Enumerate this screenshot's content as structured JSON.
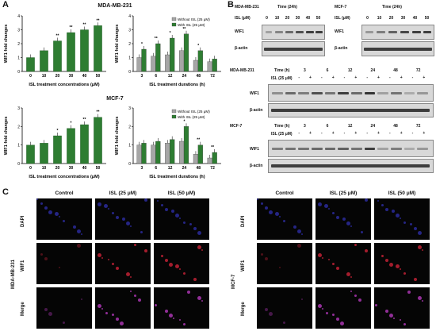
{
  "panel_labels": {
    "a": "A",
    "b": "B",
    "c": "C"
  },
  "section_titles": {
    "mda": "MDA-MB-231",
    "mcf": "MCF-7"
  },
  "chart_data": [
    {
      "type": "bar",
      "title": "MDA-MB-231",
      "ylabel": "WIF1 fold changes",
      "xlabel": "ISL treatment concentrations (μM)",
      "categories": [
        "0",
        "10",
        "20",
        "30",
        "40",
        "50"
      ],
      "values": [
        1.0,
        1.5,
        2.2,
        2.8,
        3.0,
        3.3
      ],
      "ylim": [
        0,
        4
      ],
      "yticks": [
        "0",
        "1",
        "2",
        "3",
        "4"
      ],
      "sig": [
        "",
        "",
        "**",
        "**",
        "**",
        "**"
      ],
      "colors": [
        "#2e7d32"
      ]
    },
    {
      "type": "bar",
      "ylabel": "WIF1 fold changes",
      "xlabel": "ISL treatment durations (h)",
      "categories": [
        "3",
        "6",
        "12",
        "24",
        "48",
        "72"
      ],
      "series": [
        {
          "name": "Without ISL (25 μM)",
          "values": [
            1.0,
            1.1,
            1.2,
            1.5,
            0.8,
            0.7
          ]
        },
        {
          "name": "With ISL (25 μM)",
          "values": [
            1.6,
            2.0,
            2.4,
            2.7,
            1.5,
            0.9
          ]
        }
      ],
      "ylim": [
        0,
        4
      ],
      "yticks": [
        "0",
        "1",
        "2",
        "3",
        "4"
      ],
      "sig": [
        "*",
        "**",
        "*",
        "**",
        "*",
        ""
      ],
      "legend": "top-right"
    },
    {
      "type": "bar",
      "title": "MCF-7",
      "ylabel": "WIF1 fold changes",
      "xlabel": "ISL treatment concentrations (μM)",
      "categories": [
        "0",
        "10",
        "20",
        "30",
        "40",
        "50"
      ],
      "values": [
        1.0,
        1.1,
        1.5,
        1.9,
        2.1,
        2.5
      ],
      "ylim": [
        0,
        3
      ],
      "yticks": [
        "0",
        "1",
        "2",
        "3"
      ],
      "sig": [
        "",
        "",
        "*",
        "*",
        "**",
        "**"
      ]
    },
    {
      "type": "bar",
      "ylabel": "WIF1 fold changes",
      "xlabel": "ISL treatment durations (h)",
      "categories": [
        "3",
        "6",
        "12",
        "24",
        "48",
        "72"
      ],
      "series": [
        {
          "name": "Without ISL (25 μM)",
          "values": [
            1.0,
            1.0,
            1.1,
            1.2,
            0.5,
            0.3
          ]
        },
        {
          "name": "With ISL (25 μM)",
          "values": [
            1.1,
            1.2,
            1.3,
            2.0,
            1.0,
            0.6
          ]
        }
      ],
      "ylim": [
        0,
        3
      ],
      "yticks": [
        "0",
        "1",
        "2",
        "3"
      ],
      "sig": [
        "",
        "",
        "",
        "*",
        "**",
        "**"
      ],
      "legend": "top-right"
    }
  ],
  "blotB": {
    "mda_conc": {
      "cell": "MDA-MB-231",
      "time": "Time (24h)",
      "isl": "ISL (μM)",
      "conc": [
        "0",
        "10",
        "20",
        "30",
        "40",
        "50"
      ],
      "rows": [
        "WIF1",
        "β-actin"
      ]
    },
    "mcf_conc": {
      "cell": "MCF-7",
      "time": "Time (24h)",
      "isl": "ISL (μM)",
      "conc": [
        "0",
        "10",
        "20",
        "30",
        "40",
        "50"
      ],
      "rows": [
        "WIF1",
        "β-actin"
      ]
    },
    "mda_time": {
      "cell": "MDA-MB-231",
      "time": "Time (h)",
      "isl": "ISL (25 μM)",
      "times": [
        "3",
        "6",
        "12",
        "24",
        "48",
        "72"
      ],
      "signs": [
        "-",
        "+"
      ],
      "rows": [
        "WIF1",
        "β-actin"
      ]
    },
    "mcf_time": {
      "cell": "MCF-7",
      "time": "Time (h)",
      "isl": "ISL (25 μM)",
      "times": [
        "3",
        "6",
        "12",
        "24",
        "48",
        "72"
      ],
      "signs": [
        "-",
        "+"
      ],
      "rows": [
        "WIF1",
        "β-actin"
      ]
    }
  },
  "panelC": {
    "cols": [
      "Control",
      "ISL (25 μM)",
      "ISL (50 μM)"
    ],
    "rows": [
      "DAPI",
      "WIF1",
      "Merge"
    ],
    "left_cell": "MDA-MB-231",
    "right_cell": "MCF-7"
  }
}
